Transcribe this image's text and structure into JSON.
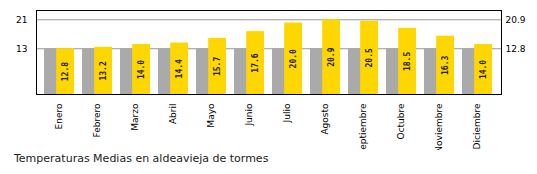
{
  "chart_data": {
    "type": "bar",
    "title": "Temperaturas Medias en aldeavieja de tormes",
    "categories": [
      "Enero",
      "Febrero",
      "Marzo",
      "Abril",
      "Mayo",
      "Junio",
      "Julio",
      "Agosto",
      "Septiembre",
      "Octubre",
      "Noviembre",
      "Diciembre"
    ],
    "series": [
      {
        "color": "#AAAAAA",
        "values": [
          12.8,
          12.8,
          12.8,
          12.8,
          12.8,
          12.8,
          12.8,
          12.8,
          12.8,
          12.8,
          12.8,
          12.8
        ]
      },
      {
        "color": "#FFD700",
        "values": [
          12.8,
          13.2,
          14.0,
          14.4,
          15.7,
          17.6,
          20.0,
          20.9,
          20.5,
          18.5,
          16.3,
          14.0
        ],
        "data_labels": true,
        "value_labels": [
          "12.8",
          "13.2",
          "14.0",
          "14.4",
          "15.7",
          "17.6",
          "20.0",
          "20.9",
          "20.5",
          "18.5",
          "16.3",
          "14.0"
        ]
      }
    ],
    "ylim": [
      0,
      23.5
    ],
    "yticks": [
      12.8,
      20.9
    ],
    "y2lim": [
      0,
      23.5
    ],
    "y2ticks": [
      12.8,
      20.9
    ],
    "grid": true
  }
}
